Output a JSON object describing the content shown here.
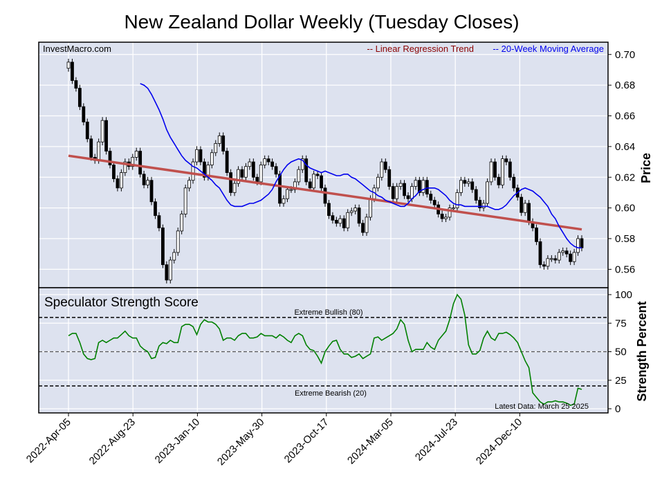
{
  "chart_data": [
    {
      "type": "candlestick",
      "title": "New Zealand Dollar Weekly (Tuesday Closes)",
      "watermark": "InvestMacro.com",
      "ylabel": "Price",
      "ylim": [
        0.548,
        0.708
      ],
      "yticks": [
        "0.70",
        "0.68",
        "0.66",
        "0.64",
        "0.62",
        "0.60",
        "0.58",
        "0.56"
      ],
      "xticks": [
        "2022-Apr-05",
        "2022-Aug-23",
        "2023-Jan-10",
        "2023-May-30",
        "2023-Oct-17",
        "2024-Mar-05",
        "2024-Jul-23",
        "2024-Dec-10"
      ],
      "legend": [
        "-- Linear Regression Trend",
        "-- 20-Week Moving Average"
      ],
      "legend_colors": [
        "#8b0000",
        "#0000ee"
      ],
      "trend": {
        "start": 0.634,
        "end": 0.586
      },
      "closes": [
        0.695,
        0.683,
        0.678,
        0.666,
        0.656,
        0.645,
        0.633,
        0.631,
        0.643,
        0.657,
        0.637,
        0.628,
        0.619,
        0.613,
        0.623,
        0.63,
        0.627,
        0.633,
        0.637,
        0.622,
        0.615,
        0.618,
        0.604,
        0.595,
        0.587,
        0.563,
        0.553,
        0.566,
        0.571,
        0.585,
        0.596,
        0.613,
        0.618,
        0.63,
        0.638,
        0.63,
        0.62,
        0.628,
        0.636,
        0.642,
        0.647,
        0.637,
        0.623,
        0.61,
        0.616,
        0.625,
        0.62,
        0.627,
        0.63,
        0.62,
        0.617,
        0.628,
        0.632,
        0.63,
        0.627,
        0.622,
        0.603,
        0.606,
        0.612,
        0.612,
        0.617,
        0.625,
        0.632,
        0.617,
        0.613,
        0.622,
        0.621,
        0.613,
        0.603,
        0.595,
        0.592,
        0.59,
        0.593,
        0.587,
        0.597,
        0.598,
        0.6,
        0.59,
        0.584,
        0.594,
        0.606,
        0.613,
        0.62,
        0.63,
        0.625,
        0.614,
        0.606,
        0.614,
        0.616,
        0.608,
        0.606,
        0.614,
        0.618,
        0.61,
        0.618,
        0.609,
        0.605,
        0.602,
        0.596,
        0.593,
        0.594,
        0.6,
        0.6,
        0.61,
        0.618,
        0.616,
        0.617,
        0.612,
        0.605,
        0.6,
        0.603,
        0.617,
        0.63,
        0.62,
        0.615,
        0.632,
        0.63,
        0.62,
        0.613,
        0.607,
        0.597,
        0.603,
        0.591,
        0.587,
        0.578,
        0.563,
        0.562,
        0.567,
        0.567,
        0.566,
        0.571,
        0.572,
        0.57,
        0.565,
        0.571,
        0.58,
        0.574
      ],
      "sma20": [
        0.681,
        0.68,
        0.678,
        0.674,
        0.669,
        0.664,
        0.658,
        0.651,
        0.646,
        0.642,
        0.638,
        0.634,
        0.631,
        0.629,
        0.627,
        0.626,
        0.624,
        0.622,
        0.62,
        0.618,
        0.615,
        0.613,
        0.609,
        0.605,
        0.602,
        0.601,
        0.601,
        0.601,
        0.602,
        0.603,
        0.603,
        0.604,
        0.605,
        0.607,
        0.609,
        0.612,
        0.617,
        0.621,
        0.625,
        0.628,
        0.63,
        0.631,
        0.632,
        0.631,
        0.628,
        0.626,
        0.625,
        0.624,
        0.623,
        0.624,
        0.623,
        0.622,
        0.621,
        0.621,
        0.622,
        0.622,
        0.62,
        0.619,
        0.617,
        0.615,
        0.613,
        0.611,
        0.61,
        0.608,
        0.607,
        0.605,
        0.604,
        0.603,
        0.602,
        0.601,
        0.601,
        0.603,
        0.606,
        0.608,
        0.611,
        0.612,
        0.613,
        0.613,
        0.613,
        0.612,
        0.61,
        0.608,
        0.605,
        0.603,
        0.602,
        0.602,
        0.601,
        0.601,
        0.601,
        0.601,
        0.601,
        0.601,
        0.601,
        0.6,
        0.599,
        0.599,
        0.6,
        0.602,
        0.605,
        0.608,
        0.61,
        0.612,
        0.613,
        0.612,
        0.611,
        0.609,
        0.607,
        0.604,
        0.601,
        0.596,
        0.593,
        0.588,
        0.584,
        0.58,
        0.577,
        0.575,
        0.574,
        0.574
      ]
    },
    {
      "type": "line",
      "title": "Speculator Strength Score",
      "ylabel": "Strength Percent",
      "ylim": [
        0,
        100
      ],
      "yticks": [
        "100",
        "75",
        "50",
        "25",
        "0"
      ],
      "extreme_bullish": {
        "value": 80,
        "label": "Extreme Bullish (80)"
      },
      "extreme_bearish": {
        "value": 20,
        "label": "Extreme Bearish (20)"
      },
      "midline": 50,
      "footnote": "Latest Data: March 25 2025",
      "color": "#008000",
      "values": [
        64,
        66,
        66,
        58,
        48,
        44,
        43,
        44,
        58,
        60,
        58,
        60,
        62,
        62,
        65,
        68,
        64,
        62,
        62,
        55,
        52,
        50,
        44,
        45,
        55,
        58,
        57,
        60,
        58,
        58,
        72,
        74,
        74,
        72,
        65,
        74,
        78,
        76,
        76,
        74,
        70,
        60,
        62,
        62,
        60,
        64,
        66,
        66,
        62,
        62,
        63,
        66,
        64,
        64,
        64,
        62,
        65,
        63,
        60,
        58,
        64,
        66,
        64,
        56,
        52,
        51,
        46,
        40,
        50,
        55,
        59,
        60,
        52,
        48,
        48,
        45,
        46,
        48,
        44,
        46,
        48,
        62,
        63,
        60,
        62,
        64,
        66,
        70,
        78,
        74,
        60,
        50,
        52,
        52,
        52,
        58,
        54,
        52,
        60,
        64,
        68,
        78,
        92,
        100,
        96,
        82,
        56,
        48,
        48,
        51,
        62,
        68,
        62,
        60,
        66,
        66,
        67,
        65,
        62,
        58,
        50,
        42,
        36,
        14,
        10,
        6,
        4,
        6,
        6,
        7,
        6,
        6,
        5,
        3,
        4,
        18,
        17
      ]
    }
  ]
}
